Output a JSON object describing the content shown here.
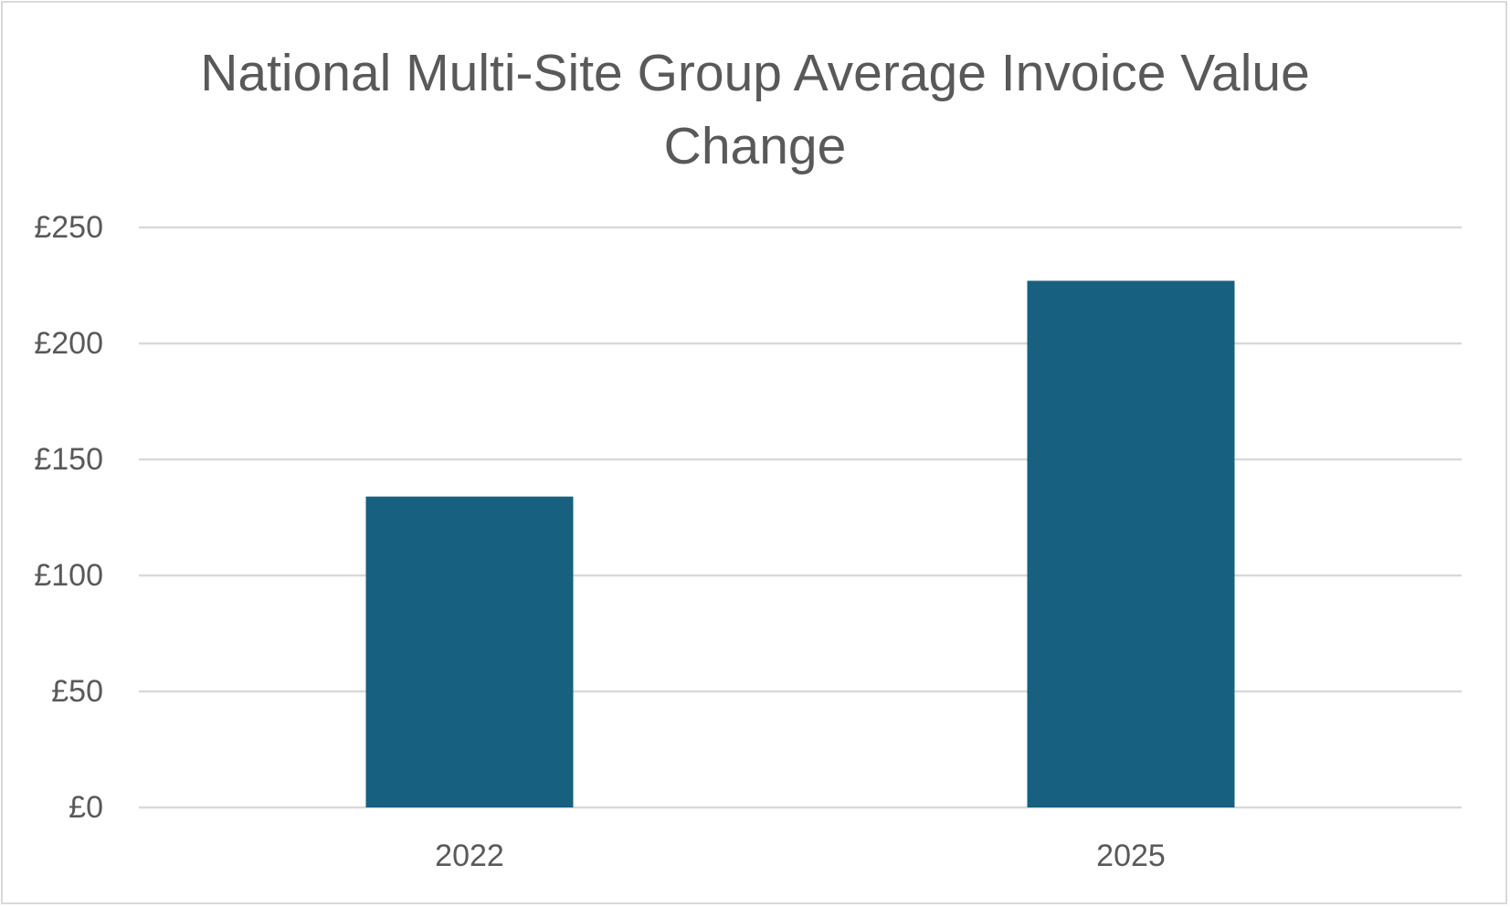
{
  "chart_data": {
    "type": "bar",
    "title": "National Multi-Site Group Average Invoice Value Change",
    "title_lines": [
      "National Multi-Site Group Average Invoice Value",
      "Change"
    ],
    "categories": [
      "2022",
      "2025"
    ],
    "values": [
      134,
      227
    ],
    "ylim": [
      0,
      250
    ],
    "yticks": [
      0,
      50,
      100,
      150,
      200,
      250
    ],
    "ytick_labels": [
      "£0",
      "£50",
      "£100",
      "£150",
      "£200",
      "£250"
    ],
    "xlabel": "",
    "ylabel": "",
    "grid": true,
    "legend": "none",
    "bar_color": "#17607f",
    "grid_color": "#d9d9d9",
    "text_color": "#595959"
  }
}
